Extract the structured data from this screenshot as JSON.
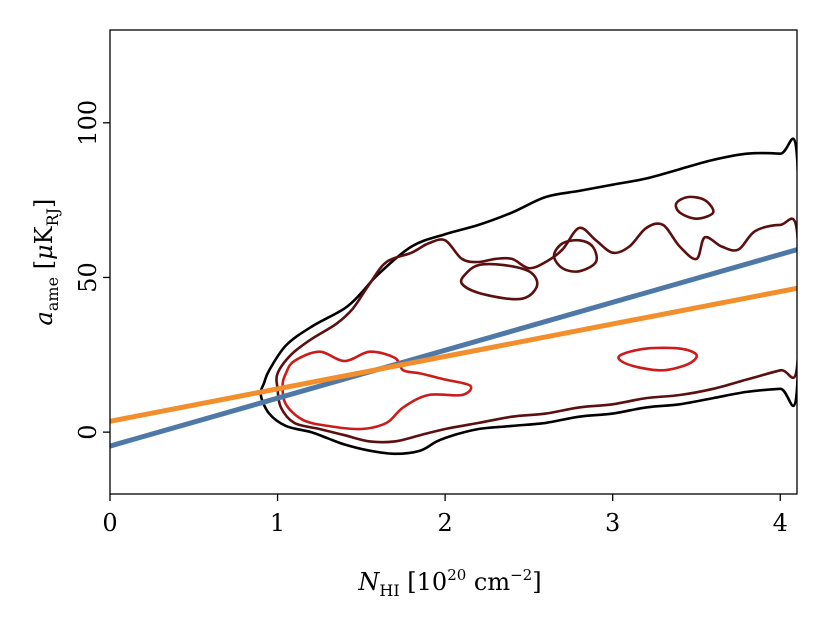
{
  "chart_data": {
    "type": "line",
    "xlabel": "N_HI [10^20 cm^-2]",
    "ylabel": "a_ame [μK_RJ]",
    "xlim": [
      0,
      4.1
    ],
    "ylim": [
      -20,
      130
    ],
    "x_ticks": [
      "0",
      "1",
      "2",
      "3",
      "4"
    ],
    "y_ticks": [
      "0",
      "50",
      "100"
    ],
    "grid": false,
    "series": [
      {
        "color": "#4e79a7",
        "x": [
          0,
          4.1
        ],
        "y": [
          -4.5,
          59
        ]
      },
      {
        "color": "#f28e2b",
        "x": [
          0,
          4.1
        ],
        "y": [
          3.5,
          46.5
        ]
      }
    ],
    "contours": [
      {
        "level": "outer",
        "color": "#000000",
        "points": [
          [
            0.92,
            16
          ],
          [
            0.9,
            12
          ],
          [
            0.95,
            6
          ],
          [
            1.05,
            2
          ],
          [
            1.2,
            0
          ],
          [
            1.3,
            -2
          ],
          [
            1.4,
            -4
          ],
          [
            1.55,
            -6
          ],
          [
            1.7,
            -7
          ],
          [
            1.85,
            -6
          ],
          [
            1.95,
            -3
          ],
          [
            2.05,
            -1
          ],
          [
            2.2,
            1
          ],
          [
            2.4,
            2
          ],
          [
            2.6,
            3
          ],
          [
            2.8,
            5
          ],
          [
            3.0,
            6
          ],
          [
            3.2,
            8
          ],
          [
            3.4,
            9
          ],
          [
            3.6,
            11
          ],
          [
            3.8,
            13
          ],
          [
            4.0,
            14
          ],
          [
            4.1,
            14
          ],
          [
            4.1,
            89
          ],
          [
            4.0,
            90
          ],
          [
            3.8,
            90
          ],
          [
            3.6,
            88
          ],
          [
            3.4,
            85
          ],
          [
            3.2,
            82
          ],
          [
            3.0,
            80
          ],
          [
            2.8,
            78
          ],
          [
            2.6,
            76
          ],
          [
            2.4,
            71
          ],
          [
            2.2,
            67
          ],
          [
            2.0,
            64
          ],
          [
            1.8,
            60
          ],
          [
            1.6,
            51
          ],
          [
            1.5,
            45
          ],
          [
            1.4,
            40
          ],
          [
            1.2,
            34
          ],
          [
            1.05,
            28
          ],
          [
            0.95,
            20
          ]
        ]
      },
      {
        "level": "middle",
        "color": "#5c0f0f",
        "points": [
          [
            1.0,
            14
          ],
          [
            1.02,
            8
          ],
          [
            1.1,
            3
          ],
          [
            1.25,
            1
          ],
          [
            1.4,
            -1
          ],
          [
            1.55,
            -3
          ],
          [
            1.7,
            -3
          ],
          [
            1.85,
            -1
          ],
          [
            2.0,
            1
          ],
          [
            2.2,
            3
          ],
          [
            2.4,
            5
          ],
          [
            2.6,
            6
          ],
          [
            2.8,
            8
          ],
          [
            3.0,
            9
          ],
          [
            3.2,
            11
          ],
          [
            3.4,
            12
          ],
          [
            3.6,
            14
          ],
          [
            3.8,
            17
          ],
          [
            4.0,
            20
          ],
          [
            4.1,
            21
          ],
          [
            4.1,
            65
          ],
          [
            4.0,
            67
          ],
          [
            3.85,
            65
          ],
          [
            3.75,
            59
          ],
          [
            3.65,
            60
          ],
          [
            3.55,
            63
          ],
          [
            3.5,
            56
          ],
          [
            3.4,
            60
          ],
          [
            3.3,
            67
          ],
          [
            3.2,
            66
          ],
          [
            3.1,
            60
          ],
          [
            3.0,
            58
          ],
          [
            2.9,
            62
          ],
          [
            2.8,
            66
          ],
          [
            2.7,
            59
          ],
          [
            2.6,
            55
          ],
          [
            2.5,
            53
          ],
          [
            2.4,
            56
          ],
          [
            2.3,
            56
          ],
          [
            2.2,
            55
          ],
          [
            2.1,
            56
          ],
          [
            2.0,
            62
          ],
          [
            1.9,
            61
          ],
          [
            1.8,
            58
          ],
          [
            1.65,
            55
          ],
          [
            1.55,
            48
          ],
          [
            1.45,
            40
          ],
          [
            1.35,
            35
          ],
          [
            1.2,
            30
          ],
          [
            1.08,
            25
          ],
          [
            1.0,
            19
          ]
        ]
      },
      {
        "level": "middle",
        "color": "#5c0f0f",
        "points": [
          [
            2.1,
            48
          ],
          [
            2.2,
            45
          ],
          [
            2.4,
            43
          ],
          [
            2.5,
            44
          ],
          [
            2.55,
            48
          ],
          [
            2.5,
            52
          ],
          [
            2.35,
            54
          ],
          [
            2.2,
            54
          ],
          [
            2.12,
            51
          ]
        ]
      },
      {
        "level": "middle",
        "color": "#5c0f0f",
        "points": [
          [
            2.65,
            57
          ],
          [
            2.7,
            53
          ],
          [
            2.8,
            52
          ],
          [
            2.9,
            55
          ],
          [
            2.88,
            60
          ],
          [
            2.8,
            62
          ],
          [
            2.7,
            61
          ]
        ]
      },
      {
        "level": "middle",
        "color": "#5c0f0f",
        "points": [
          [
            3.4,
            71
          ],
          [
            3.5,
            69
          ],
          [
            3.6,
            71
          ],
          [
            3.55,
            75
          ],
          [
            3.45,
            76
          ],
          [
            3.38,
            74
          ]
        ]
      },
      {
        "level": "inner",
        "color": "#cc1b1b",
        "points": [
          [
            1.03,
            15
          ],
          [
            1.05,
            9
          ],
          [
            1.15,
            4
          ],
          [
            1.3,
            2
          ],
          [
            1.5,
            1
          ],
          [
            1.65,
            3
          ],
          [
            1.75,
            8
          ],
          [
            1.9,
            12
          ],
          [
            2.1,
            12
          ],
          [
            2.15,
            15
          ],
          [
            2.0,
            17
          ],
          [
            1.85,
            19
          ],
          [
            1.75,
            20
          ],
          [
            1.7,
            24
          ],
          [
            1.55,
            26
          ],
          [
            1.4,
            23
          ],
          [
            1.25,
            26
          ],
          [
            1.1,
            23
          ],
          [
            1.05,
            19
          ]
        ]
      },
      {
        "level": "inner",
        "color": "#cc1b1b",
        "points": [
          [
            3.05,
            23
          ],
          [
            3.15,
            21
          ],
          [
            3.3,
            20
          ],
          [
            3.45,
            22
          ],
          [
            3.5,
            25
          ],
          [
            3.4,
            27
          ],
          [
            3.2,
            27
          ],
          [
            3.05,
            25
          ]
        ]
      }
    ]
  }
}
